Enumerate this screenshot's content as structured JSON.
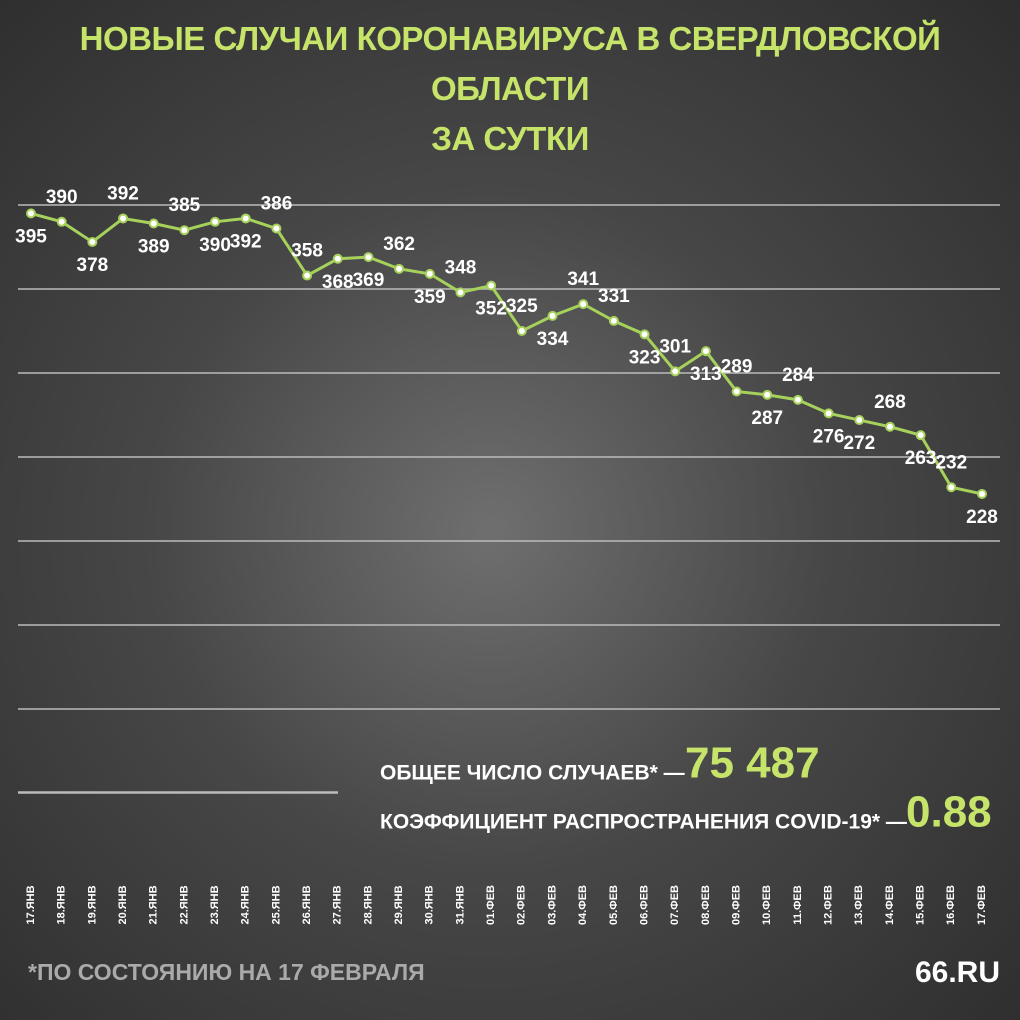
{
  "chart_data": {
    "type": "line",
    "title": "НОВЫЕ СЛУЧАИ КОРОНАВИРУСА В СВЕРДЛОВСКОЙ ОБЛАСТИ\nЗА СУТКИ",
    "categories": [
      "17.ЯНВ",
      "18.ЯНВ",
      "19.ЯНВ",
      "20.ЯНВ",
      "21.ЯНВ",
      "22.ЯНВ",
      "23.ЯНВ",
      "24.ЯНВ",
      "25.ЯНВ",
      "26.ЯНВ",
      "27.ЯНВ",
      "28.ЯНВ",
      "29.ЯНВ",
      "30.ЯНВ",
      "31.ЯНВ",
      "01.ФЕВ",
      "02.ФЕВ",
      "03.ФЕВ",
      "04.ФЕВ",
      "05.ФЕВ",
      "06.ФЕВ",
      "07.ФЕВ",
      "08.ФЕВ",
      "09.ФЕВ",
      "10.ФЕВ",
      "11.ФЕВ",
      "12.ФЕВ",
      "13.ФЕВ",
      "14.ФЕВ",
      "15.ФЕВ",
      "16.ФЕВ",
      "17.ФЕВ"
    ],
    "values": [
      395,
      390,
      378,
      392,
      389,
      385,
      390,
      392,
      386,
      358,
      368,
      369,
      362,
      359,
      348,
      352,
      325,
      334,
      341,
      331,
      323,
      301,
      313,
      289,
      287,
      284,
      276,
      272,
      268,
      263,
      232,
      228
    ],
    "color": "#a6d15a",
    "ylim": [
      0,
      400
    ],
    "yticks": [
      50,
      100,
      150,
      200,
      250,
      300,
      350,
      400
    ],
    "grid": true,
    "summary": [
      {
        "label": "ОБЩЕЕ ЧИСЛО СЛУЧАЕВ* —",
        "value": "75 487"
      },
      {
        "label": "КОЭФФИЦИЕНТ РАСПРОСТРАНЕНИЯ COVID-19* —",
        "value": "0.88"
      }
    ],
    "footnote": "*ПО СОСТОЯНИЮ НА 17 ФЕВРАЛЯ",
    "logo": "66.RU"
  }
}
